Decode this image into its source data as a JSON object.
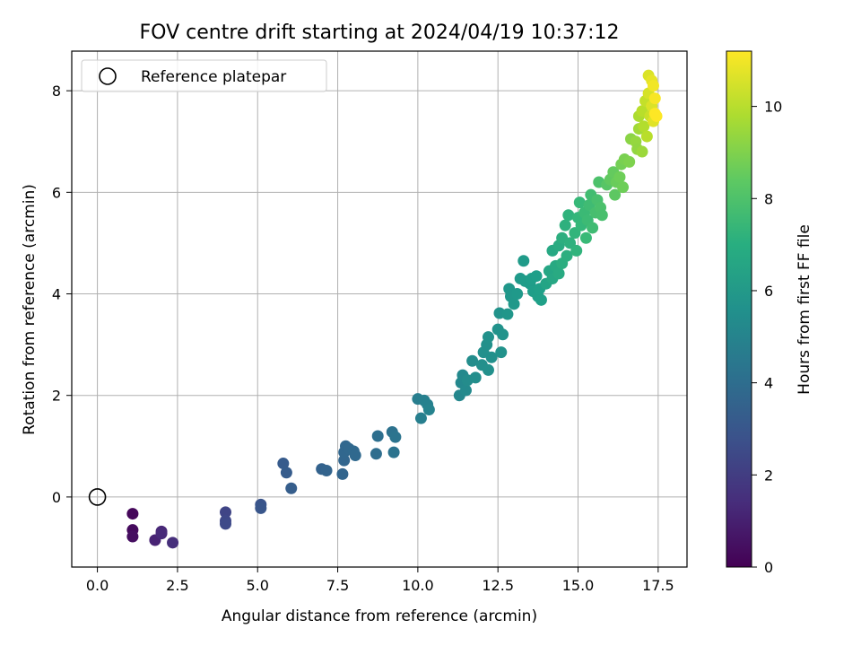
{
  "chart_data": {
    "type": "scatter",
    "title": "FOV centre drift starting at 2024/04/19 10:37:12",
    "xlabel": "Angular distance from reference (arcmin)",
    "ylabel": "Rotation from reference (arcmin)",
    "xlim": [
      -0.8,
      18.4
    ],
    "ylim": [
      -1.38,
      8.78
    ],
    "x_ticks": [
      "0.0",
      "2.5",
      "5.0",
      "7.5",
      "10.0",
      "12.5",
      "15.0",
      "17.5"
    ],
    "y_ticks": [
      "0",
      "2",
      "4",
      "6",
      "8"
    ],
    "grid": true,
    "legend": {
      "position": "top-left",
      "entries": [
        "Reference platepar"
      ]
    },
    "reference_point": {
      "x": 0,
      "y": 0,
      "marker": "open-circle"
    },
    "colorbar": {
      "label": "Hours from first FF file",
      "colormap": "viridis",
      "range": [
        0,
        11.2
      ],
      "ticks": [
        "0",
        "2",
        "4",
        "6",
        "8",
        "10"
      ]
    },
    "points": [
      {
        "x": 1.1,
        "y": -0.33,
        "c": 0.2
      },
      {
        "x": 1.1,
        "y": -0.65,
        "c": 0.3
      },
      {
        "x": 1.1,
        "y": -0.78,
        "c": 0.4
      },
      {
        "x": 1.8,
        "y": -0.85,
        "c": 1.1
      },
      {
        "x": 2.0,
        "y": -0.68,
        "c": 1.2
      },
      {
        "x": 2.0,
        "y": -0.72,
        "c": 1.3
      },
      {
        "x": 2.35,
        "y": -0.9,
        "c": 1.5
      },
      {
        "x": 4.0,
        "y": -0.3,
        "c": 2.3
      },
      {
        "x": 4.0,
        "y": -0.47,
        "c": 2.4
      },
      {
        "x": 4.0,
        "y": -0.53,
        "c": 2.5
      },
      {
        "x": 5.1,
        "y": -0.15,
        "c": 2.9
      },
      {
        "x": 5.1,
        "y": -0.22,
        "c": 3.0
      },
      {
        "x": 5.8,
        "y": 0.66,
        "c": 3.2
      },
      {
        "x": 5.9,
        "y": 0.48,
        "c": 3.25
      },
      {
        "x": 6.05,
        "y": 0.17,
        "c": 3.3
      },
      {
        "x": 7.0,
        "y": 0.55,
        "c": 3.5
      },
      {
        "x": 7.15,
        "y": 0.52,
        "c": 3.55
      },
      {
        "x": 7.65,
        "y": 0.45,
        "c": 3.6
      },
      {
        "x": 7.7,
        "y": 0.72,
        "c": 3.65
      },
      {
        "x": 7.7,
        "y": 0.88,
        "c": 3.7
      },
      {
        "x": 7.75,
        "y": 1.0,
        "c": 3.7
      },
      {
        "x": 7.85,
        "y": 0.95,
        "c": 3.75
      },
      {
        "x": 8.0,
        "y": 0.9,
        "c": 3.8
      },
      {
        "x": 8.05,
        "y": 0.82,
        "c": 3.8
      },
      {
        "x": 8.7,
        "y": 0.85,
        "c": 4.0
      },
      {
        "x": 8.75,
        "y": 1.2,
        "c": 4.05
      },
      {
        "x": 9.2,
        "y": 1.28,
        "c": 4.2
      },
      {
        "x": 9.25,
        "y": 0.88,
        "c": 4.25
      },
      {
        "x": 9.3,
        "y": 1.18,
        "c": 4.3
      },
      {
        "x": 10.0,
        "y": 1.93,
        "c": 4.8
      },
      {
        "x": 10.1,
        "y": 1.55,
        "c": 4.85
      },
      {
        "x": 10.2,
        "y": 1.9,
        "c": 4.9
      },
      {
        "x": 10.3,
        "y": 1.82,
        "c": 4.95
      },
      {
        "x": 10.35,
        "y": 1.72,
        "c": 5.0
      },
      {
        "x": 11.3,
        "y": 2.0,
        "c": 5.2
      },
      {
        "x": 11.35,
        "y": 2.25,
        "c": 5.25
      },
      {
        "x": 11.4,
        "y": 2.4,
        "c": 5.3
      },
      {
        "x": 11.5,
        "y": 2.1,
        "c": 5.35
      },
      {
        "x": 11.55,
        "y": 2.3,
        "c": 5.4
      },
      {
        "x": 11.7,
        "y": 2.68,
        "c": 5.45
      },
      {
        "x": 11.8,
        "y": 2.35,
        "c": 5.5
      },
      {
        "x": 12.0,
        "y": 2.6,
        "c": 5.55
      },
      {
        "x": 12.05,
        "y": 2.85,
        "c": 5.6
      },
      {
        "x": 12.15,
        "y": 3.0,
        "c": 5.62
      },
      {
        "x": 12.2,
        "y": 3.15,
        "c": 5.65
      },
      {
        "x": 12.2,
        "y": 2.5,
        "c": 5.6
      },
      {
        "x": 12.3,
        "y": 2.75,
        "c": 5.62
      },
      {
        "x": 12.5,
        "y": 3.3,
        "c": 5.7
      },
      {
        "x": 12.55,
        "y": 3.62,
        "c": 5.75
      },
      {
        "x": 12.6,
        "y": 2.85,
        "c": 5.7
      },
      {
        "x": 12.65,
        "y": 3.2,
        "c": 5.72
      },
      {
        "x": 12.8,
        "y": 3.6,
        "c": 5.85
      },
      {
        "x": 12.85,
        "y": 4.1,
        "c": 5.9
      },
      {
        "x": 12.9,
        "y": 3.95,
        "c": 5.92
      },
      {
        "x": 13.0,
        "y": 3.8,
        "c": 5.95
      },
      {
        "x": 13.1,
        "y": 4.0,
        "c": 6.0
      },
      {
        "x": 13.2,
        "y": 4.3,
        "c": 6.05
      },
      {
        "x": 13.3,
        "y": 4.65,
        "c": 6.1
      },
      {
        "x": 13.35,
        "y": 4.25,
        "c": 6.12
      },
      {
        "x": 13.5,
        "y": 4.2,
        "c": 6.15
      },
      {
        "x": 13.55,
        "y": 4.3,
        "c": 6.2
      },
      {
        "x": 13.6,
        "y": 4.05,
        "c": 6.22
      },
      {
        "x": 13.7,
        "y": 4.35,
        "c": 6.25
      },
      {
        "x": 13.75,
        "y": 3.95,
        "c": 6.27
      },
      {
        "x": 13.8,
        "y": 4.1,
        "c": 6.3
      },
      {
        "x": 13.85,
        "y": 3.88,
        "c": 6.3
      },
      {
        "x": 14.0,
        "y": 4.2,
        "c": 6.5
      },
      {
        "x": 14.1,
        "y": 4.45,
        "c": 6.6
      },
      {
        "x": 14.2,
        "y": 4.85,
        "c": 6.7
      },
      {
        "x": 14.2,
        "y": 4.3,
        "c": 6.65
      },
      {
        "x": 14.3,
        "y": 4.55,
        "c": 6.75
      },
      {
        "x": 14.4,
        "y": 4.95,
        "c": 6.85
      },
      {
        "x": 14.4,
        "y": 4.4,
        "c": 6.8
      },
      {
        "x": 14.5,
        "y": 5.1,
        "c": 7.0
      },
      {
        "x": 14.5,
        "y": 4.6,
        "c": 6.95
      },
      {
        "x": 14.6,
        "y": 5.35,
        "c": 7.1
      },
      {
        "x": 14.65,
        "y": 4.75,
        "c": 7.0
      },
      {
        "x": 14.7,
        "y": 5.55,
        "c": 7.2
      },
      {
        "x": 14.75,
        "y": 5.0,
        "c": 7.1
      },
      {
        "x": 14.9,
        "y": 5.2,
        "c": 7.3
      },
      {
        "x": 14.95,
        "y": 4.85,
        "c": 7.25
      },
      {
        "x": 15.0,
        "y": 5.5,
        "c": 7.4
      },
      {
        "x": 15.05,
        "y": 5.8,
        "c": 7.5
      },
      {
        "x": 15.1,
        "y": 5.35,
        "c": 7.45
      },
      {
        "x": 15.2,
        "y": 5.6,
        "c": 7.6
      },
      {
        "x": 15.25,
        "y": 5.1,
        "c": 7.55
      },
      {
        "x": 15.3,
        "y": 5.45,
        "c": 7.65
      },
      {
        "x": 15.35,
        "y": 5.75,
        "c": 7.7
      },
      {
        "x": 15.4,
        "y": 5.95,
        "c": 7.75
      },
      {
        "x": 15.45,
        "y": 5.3,
        "c": 7.7
      },
      {
        "x": 15.55,
        "y": 5.6,
        "c": 7.85
      },
      {
        "x": 15.6,
        "y": 5.85,
        "c": 7.9
      },
      {
        "x": 15.65,
        "y": 6.2,
        "c": 8.0
      },
      {
        "x": 15.7,
        "y": 5.7,
        "c": 7.95
      },
      {
        "x": 15.75,
        "y": 5.55,
        "c": 7.9
      },
      {
        "x": 15.9,
        "y": 6.15,
        "c": 8.2
      },
      {
        "x": 16.0,
        "y": 6.25,
        "c": 8.4
      },
      {
        "x": 16.1,
        "y": 6.4,
        "c": 8.5
      },
      {
        "x": 16.15,
        "y": 5.95,
        "c": 8.35
      },
      {
        "x": 16.2,
        "y": 6.2,
        "c": 8.6
      },
      {
        "x": 16.3,
        "y": 6.3,
        "c": 8.7
      },
      {
        "x": 16.35,
        "y": 6.55,
        "c": 8.8
      },
      {
        "x": 16.4,
        "y": 6.1,
        "c": 8.7
      },
      {
        "x": 16.45,
        "y": 6.65,
        "c": 8.9
      },
      {
        "x": 16.6,
        "y": 6.6,
        "c": 9.0
      },
      {
        "x": 16.65,
        "y": 7.05,
        "c": 9.2
      },
      {
        "x": 16.8,
        "y": 7.0,
        "c": 9.4
      },
      {
        "x": 16.85,
        "y": 6.85,
        "c": 9.35
      },
      {
        "x": 16.9,
        "y": 7.25,
        "c": 9.6
      },
      {
        "x": 16.9,
        "y": 7.5,
        "c": 9.8
      },
      {
        "x": 17.0,
        "y": 6.8,
        "c": 9.5
      },
      {
        "x": 17.0,
        "y": 7.6,
        "c": 10.0
      },
      {
        "x": 17.05,
        "y": 7.3,
        "c": 9.9
      },
      {
        "x": 17.1,
        "y": 7.8,
        "c": 10.2
      },
      {
        "x": 17.15,
        "y": 7.1,
        "c": 10.0
      },
      {
        "x": 17.2,
        "y": 8.3,
        "c": 10.6
      },
      {
        "x": 17.2,
        "y": 7.95,
        "c": 10.5
      },
      {
        "x": 17.25,
        "y": 7.5,
        "c": 10.3
      },
      {
        "x": 17.3,
        "y": 8.2,
        "c": 10.8
      },
      {
        "x": 17.3,
        "y": 7.7,
        "c": 10.6
      },
      {
        "x": 17.35,
        "y": 8.1,
        "c": 11.0
      },
      {
        "x": 17.35,
        "y": 7.4,
        "c": 10.7
      },
      {
        "x": 17.4,
        "y": 7.85,
        "c": 11.1
      },
      {
        "x": 17.4,
        "y": 7.55,
        "c": 11.2
      },
      {
        "x": 17.45,
        "y": 7.5,
        "c": 11.2
      }
    ]
  }
}
